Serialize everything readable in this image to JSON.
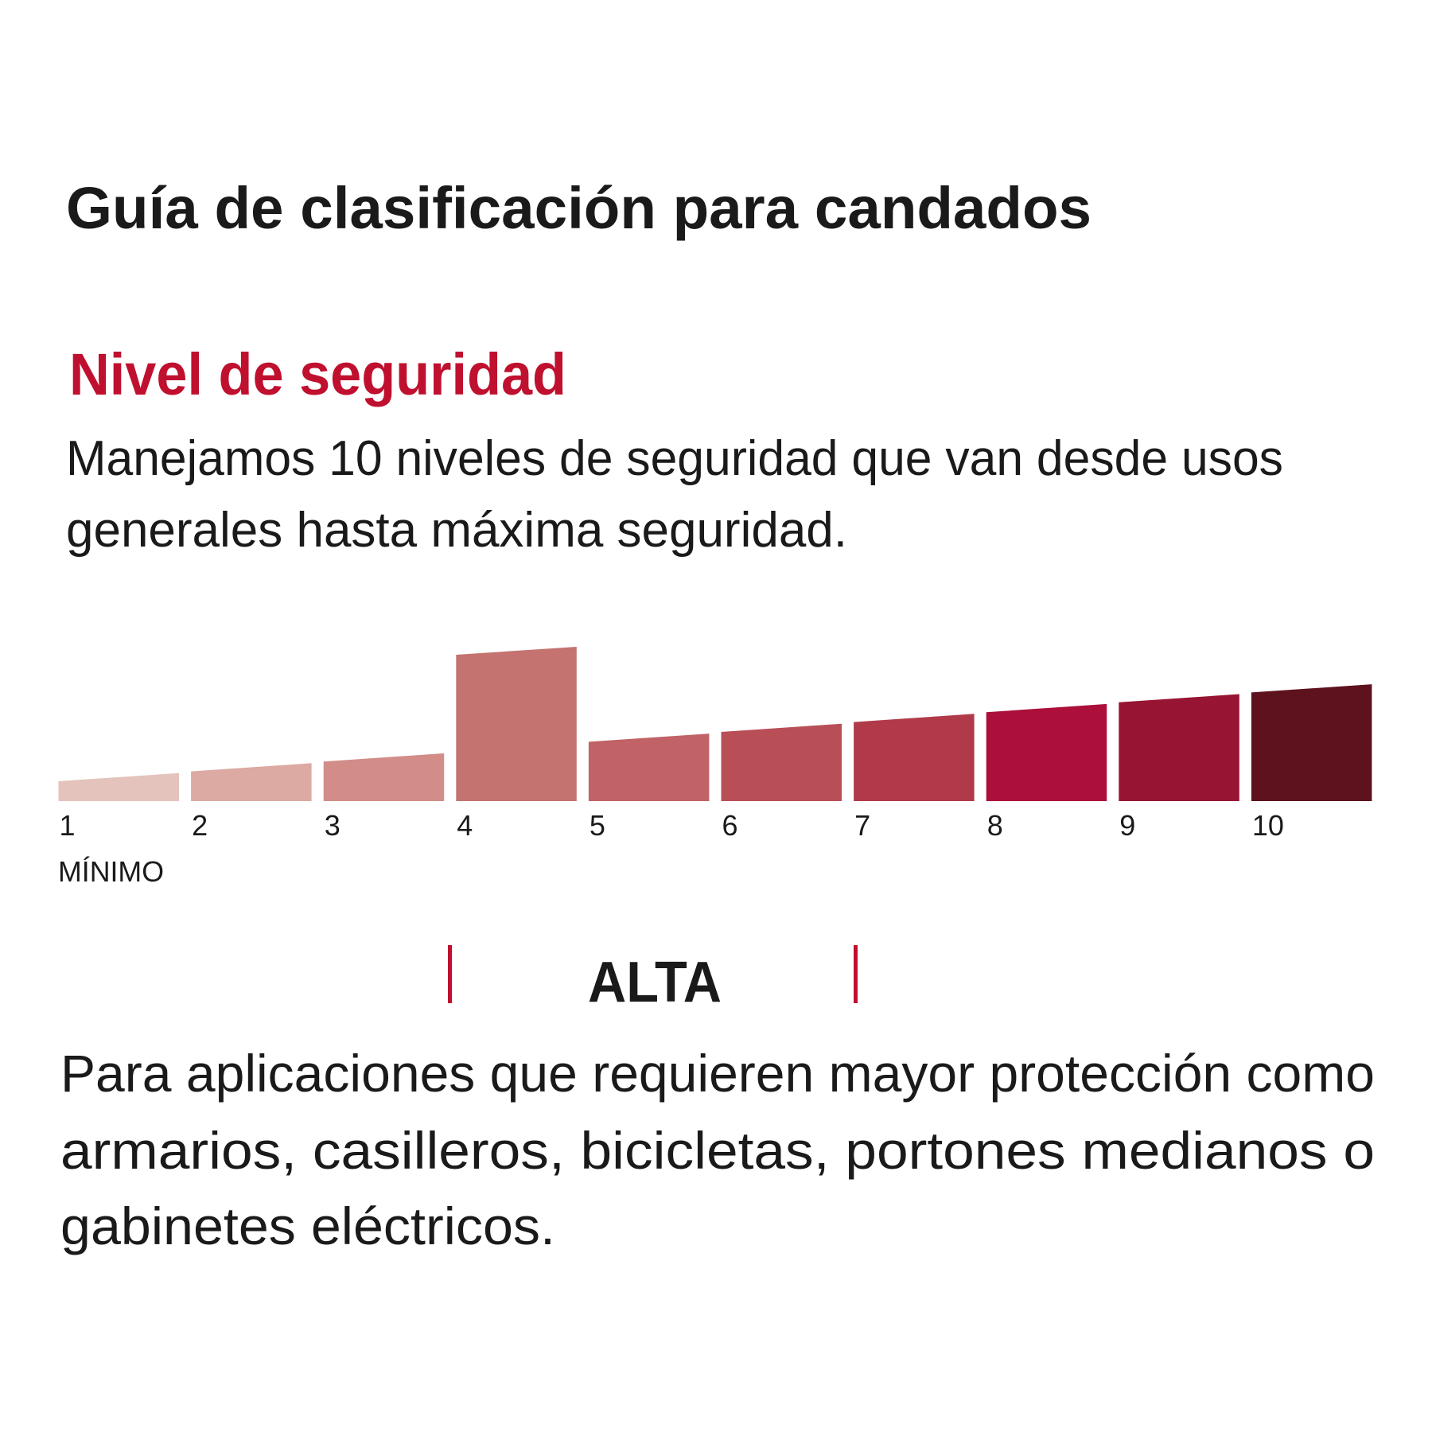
{
  "header": {
    "title": "Guía de clasificación para candados"
  },
  "section": {
    "heading": "Nivel de seguridad",
    "description": [
      "Manejamos 10 niveles de seguridad que van desde usos",
      "generales hasta máxima seguridad."
    ]
  },
  "scale": {
    "levels": [
      1,
      2,
      3,
      4,
      5,
      6,
      7,
      8,
      9,
      10
    ],
    "min_label": "MÍNIMO"
  },
  "rating": {
    "label": "ALTA",
    "description": [
      "Para aplicaciones que requieren mayor protección como",
      "armarios, casilleros, bicicletas, portones medianos o",
      "gabinetes eléctricos."
    ]
  }
}
